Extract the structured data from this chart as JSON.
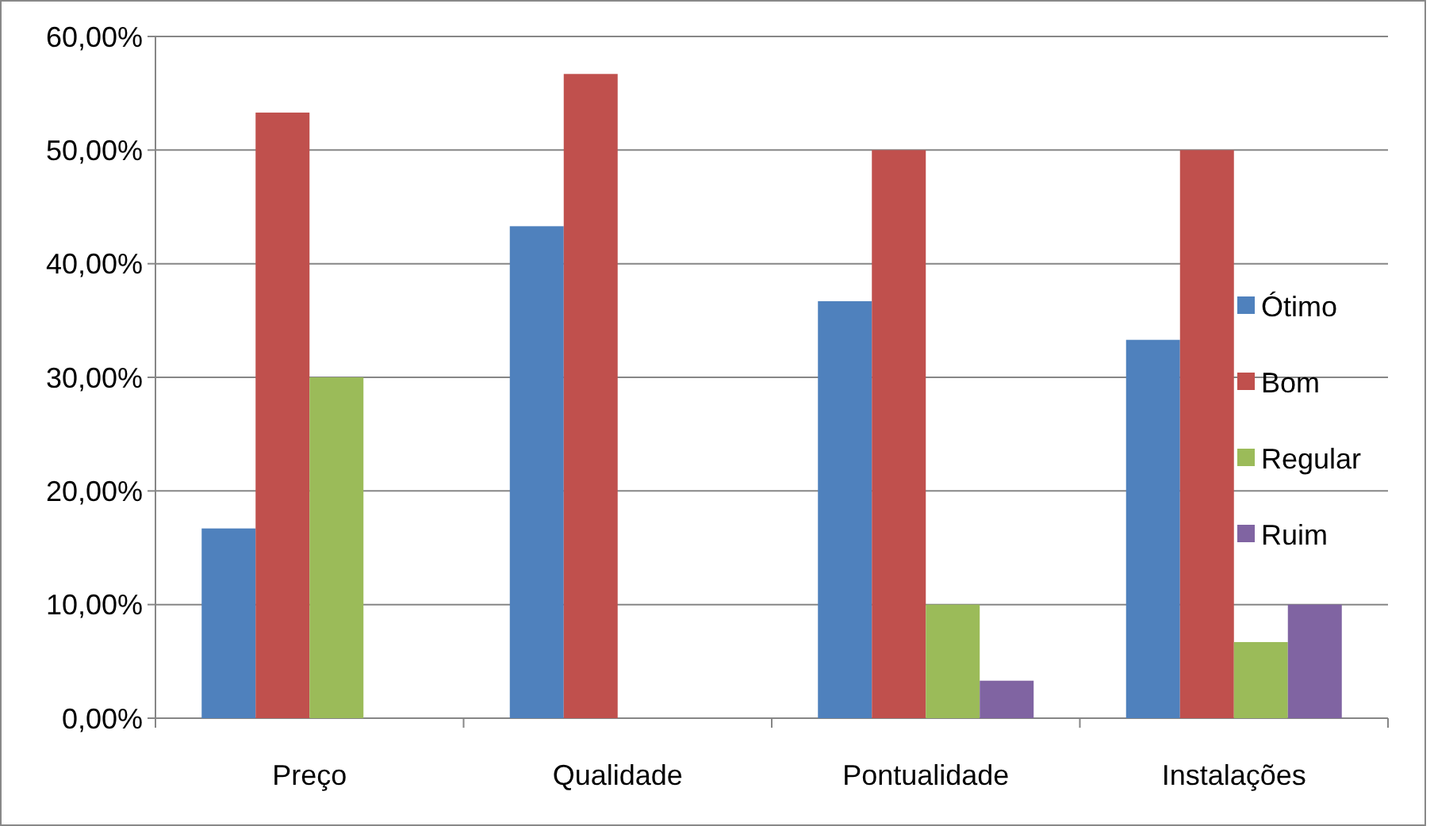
{
  "chart_data": {
    "type": "bar",
    "categories": [
      "Preço",
      "Qualidade",
      "Pontualidade",
      "Instalações"
    ],
    "series": [
      {
        "name": "Ótimo",
        "color": "#4f81bd",
        "values": [
          16.7,
          43.3,
          36.7,
          33.3
        ]
      },
      {
        "name": "Bom",
        "color": "#c0504d",
        "values": [
          53.3,
          56.7,
          50,
          50
        ]
      },
      {
        "name": "Regular",
        "color": "#9bbb59",
        "values": [
          30,
          0,
          10,
          6.7
        ]
      },
      {
        "name": "Ruim",
        "color": "#8064a2",
        "values": [
          0,
          0,
          3.3,
          10
        ]
      }
    ],
    "ylim": [
      0,
      60
    ],
    "yticks": [
      {
        "value": 0,
        "label": "0,00%"
      },
      {
        "value": 10,
        "label": "10,00%"
      },
      {
        "value": 20,
        "label": "20,00%"
      },
      {
        "value": 30,
        "label": "30,00%"
      },
      {
        "value": 40,
        "label": "40,00%"
      },
      {
        "value": 50,
        "label": "50,00%"
      },
      {
        "value": 60,
        "label": "60,00%"
      }
    ],
    "grid": "y",
    "legend": "right"
  }
}
